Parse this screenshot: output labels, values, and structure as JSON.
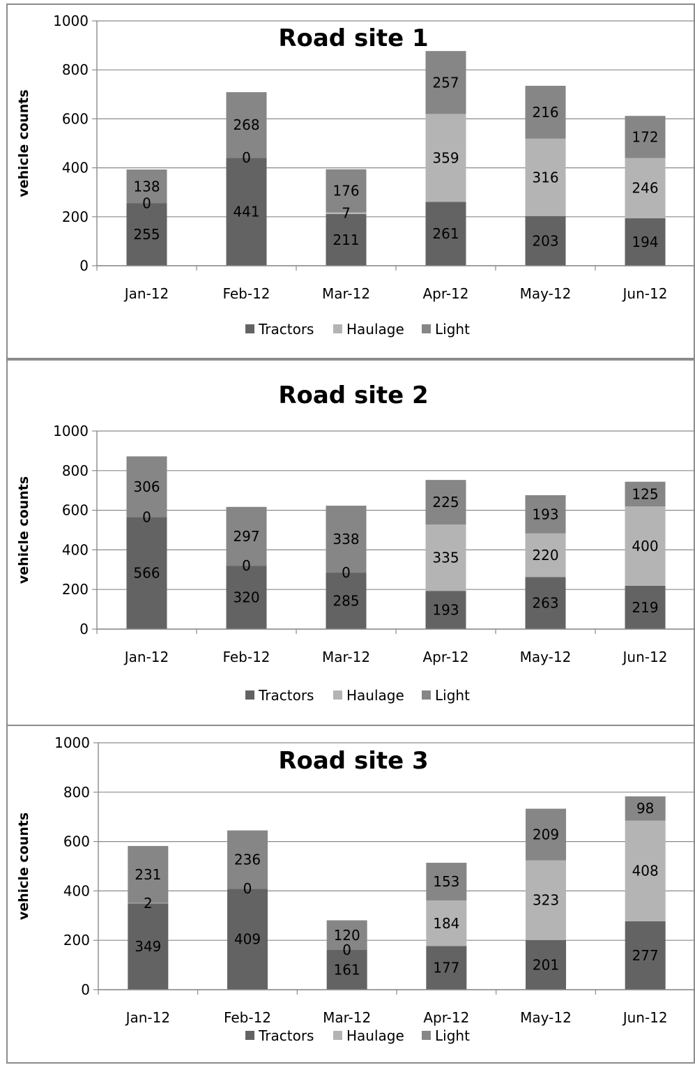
{
  "colors": {
    "tractors": "#636363",
    "haulage": "#b4b4b4",
    "light": "#868686"
  },
  "chart_data": [
    {
      "type": "bar",
      "stacked": true,
      "title": "Road site 1",
      "ylabel": "vehicle counts",
      "xlabel": "",
      "ylim": [
        0,
        1000
      ],
      "yticks": [
        0,
        200,
        400,
        600,
        800,
        1000
      ],
      "grid": true,
      "legend": "bottom",
      "categories": [
        "Jan-12",
        "Feb-12",
        "Mar-12",
        "Apr-12",
        "May-12",
        "Jun-12"
      ],
      "series": [
        {
          "name": "Tractors",
          "color_key": "tractors",
          "values": [
            255,
            441,
            211,
            261,
            203,
            194
          ]
        },
        {
          "name": "Haulage",
          "color_key": "haulage",
          "values": [
            0,
            0,
            7,
            359,
            316,
            246
          ]
        },
        {
          "name": "Light",
          "color_key": "light",
          "values": [
            138,
            268,
            176,
            257,
            216,
            172
          ]
        }
      ]
    },
    {
      "type": "bar",
      "stacked": true,
      "title": "Road site 2",
      "ylabel": "vehicle counts",
      "xlabel": "",
      "ylim": [
        0,
        1000
      ],
      "yticks": [
        0,
        200,
        400,
        600,
        800,
        1000
      ],
      "grid": true,
      "legend": "bottom",
      "categories": [
        "Jan-12",
        "Feb-12",
        "Mar-12",
        "Apr-12",
        "May-12",
        "Jun-12"
      ],
      "series": [
        {
          "name": "Tractors",
          "color_key": "tractors",
          "values": [
            566,
            320,
            285,
            193,
            263,
            219
          ]
        },
        {
          "name": "Haulage",
          "color_key": "haulage",
          "values": [
            0,
            0,
            0,
            335,
            220,
            400
          ]
        },
        {
          "name": "Light",
          "color_key": "light",
          "values": [
            306,
            297,
            338,
            225,
            193,
            125
          ]
        }
      ]
    },
    {
      "type": "bar",
      "stacked": true,
      "title": "Road site 3",
      "ylabel": "vehicle counts",
      "xlabel": "",
      "ylim": [
        0,
        1000
      ],
      "yticks": [
        0,
        200,
        400,
        600,
        800,
        1000
      ],
      "grid": true,
      "legend": "bottom",
      "categories": [
        "Jan-12",
        "Feb-12",
        "Mar-12",
        "Apr-12",
        "May-12",
        "Jun-12"
      ],
      "series": [
        {
          "name": "Tractors",
          "color_key": "tractors",
          "values": [
            349,
            409,
            161,
            177,
            201,
            277
          ]
        },
        {
          "name": "Haulage",
          "color_key": "haulage",
          "values": [
            2,
            0,
            0,
            184,
            323,
            408
          ]
        },
        {
          "name": "Light",
          "color_key": "light",
          "values": [
            231,
            236,
            120,
            153,
            209,
            98
          ]
        }
      ]
    }
  ]
}
